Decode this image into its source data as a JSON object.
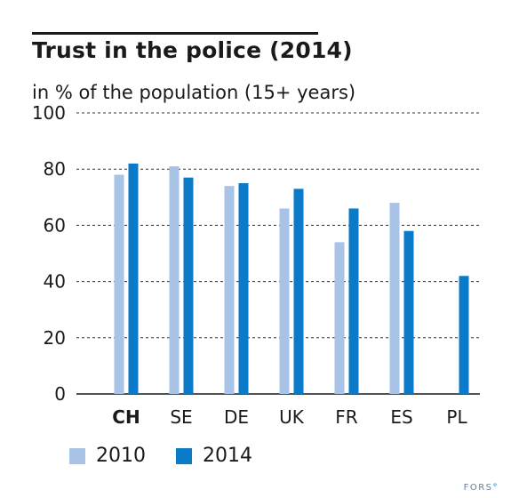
{
  "title": "Trust in the police (2014)",
  "subtitle": "in % of the population (15+ years)",
  "brand": "FORS",
  "brand_mark": "°",
  "colors": {
    "series_2010": "#a8c3e6",
    "series_2014": "#0b7ac8",
    "grid": "#333333",
    "text": "#1a1a1a"
  },
  "chart_data": {
    "type": "bar",
    "categories": [
      "CH",
      "SE",
      "DE",
      "UK",
      "FR",
      "ES",
      "PL"
    ],
    "highlight_category": "CH",
    "yticks": [
      0,
      20,
      40,
      60,
      80,
      100
    ],
    "ylim": [
      0,
      100
    ],
    "grid": true,
    "legend_position": "bottom-left",
    "series": [
      {
        "name": "2010",
        "values": [
          78,
          81,
          74,
          66,
          54,
          68,
          null
        ]
      },
      {
        "name": "2014",
        "values": [
          82,
          77,
          75,
          73,
          66,
          58,
          42
        ]
      }
    ]
  }
}
